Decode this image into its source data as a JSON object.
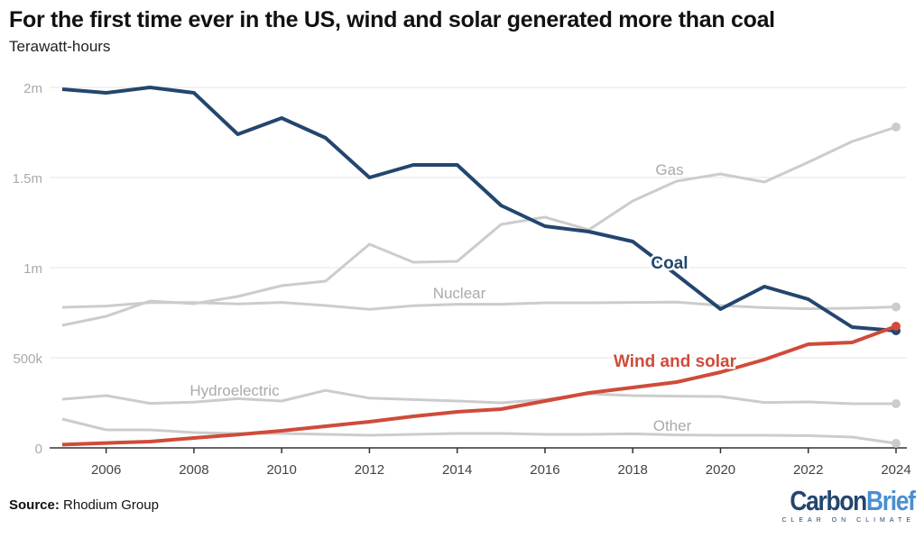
{
  "title": "For the first time ever in the US, wind and solar generated more than coal",
  "subtitle": "Terawatt-hours",
  "source_label": "Source:",
  "source_text": "Rhodium Group",
  "logo": {
    "text1": "Carbon",
    "text2": "Brief",
    "tagline": "CLEAR ON CLIMATE"
  },
  "chart_data": {
    "type": "line",
    "title": "For the first time ever in the US, wind and solar generated more than coal",
    "ylabel": "Terawatt-hours",
    "x": [
      2005,
      2006,
      2007,
      2008,
      2009,
      2010,
      2011,
      2012,
      2013,
      2014,
      2015,
      2016,
      2017,
      2018,
      2019,
      2020,
      2021,
      2022,
      2023,
      2024
    ],
    "xticks": [
      2006,
      2008,
      2010,
      2012,
      2014,
      2016,
      2018,
      2020,
      2022,
      2024
    ],
    "yticks": [
      0,
      500000,
      1000000,
      1500000,
      2000000
    ],
    "ytick_labels": [
      "0",
      "500k",
      "1m",
      "1.5m",
      "2m"
    ],
    "ylim": [
      0,
      2000000
    ],
    "grid": true,
    "series": [
      {
        "name": "Gas",
        "color": "#cccccc",
        "values": [
          680000,
          730000,
          815000,
          800000,
          840000,
          900000,
          925000,
          1130000,
          1030000,
          1035000,
          1240000,
          1280000,
          1210000,
          1370000,
          1480000,
          1520000,
          1475000,
          1585000,
          1700000,
          1780000
        ]
      },
      {
        "name": "Nuclear",
        "color": "#cccccc",
        "values": [
          780000,
          787000,
          806000,
          806000,
          799000,
          807000,
          790000,
          769000,
          789000,
          797000,
          797000,
          805000,
          805000,
          807000,
          809000,
          790000,
          778000,
          772000,
          775000,
          782000
        ]
      },
      {
        "name": "Hydroelectric",
        "color": "#cccccc",
        "values": [
          270000,
          290000,
          247000,
          254000,
          273000,
          260000,
          319000,
          276000,
          268000,
          260000,
          250000,
          268000,
          300000,
          290000,
          287000,
          285000,
          252000,
          255000,
          245000,
          245000
        ]
      },
      {
        "name": "Other",
        "color": "#cccccc",
        "values": [
          160000,
          100000,
          100000,
          85000,
          80000,
          80000,
          75000,
          70000,
          75000,
          80000,
          80000,
          75000,
          75000,
          78000,
          72000,
          70000,
          70000,
          68000,
          60000,
          25000
        ]
      },
      {
        "name": "Coal",
        "color": "#23466f",
        "values": [
          1990000,
          1970000,
          2000000,
          1970000,
          1740000,
          1830000,
          1720000,
          1500000,
          1570000,
          1570000,
          1345000,
          1230000,
          1200000,
          1145000,
          960000,
          770000,
          895000,
          825000,
          670000,
          650000
        ]
      },
      {
        "name": "Wind and solar",
        "color": "#d04b3a",
        "values": [
          18000,
          27000,
          35000,
          55000,
          74000,
          95000,
          120000,
          145000,
          175000,
          200000,
          215000,
          260000,
          305000,
          335000,
          365000,
          420000,
          490000,
          575000,
          585000,
          675000
        ]
      }
    ]
  }
}
